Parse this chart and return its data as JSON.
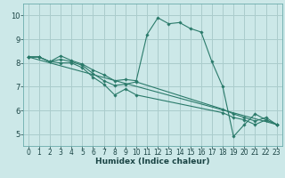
{
  "xlabel": "Humidex (Indice chaleur)",
  "bg_color": "#cce8e8",
  "grid_color": "#aacccc",
  "line_color": "#2a7a6a",
  "xlim": [
    -0.5,
    23.5
  ],
  "ylim": [
    4.5,
    10.5
  ],
  "yticks": [
    5,
    6,
    7,
    8,
    9,
    10
  ],
  "xticks": [
    0,
    1,
    2,
    3,
    4,
    5,
    6,
    7,
    8,
    9,
    10,
    11,
    12,
    13,
    14,
    15,
    16,
    17,
    18,
    19,
    20,
    21,
    22,
    23
  ],
  "lines": [
    {
      "x": [
        0,
        1,
        2,
        3,
        4,
        5,
        6,
        7,
        8,
        9,
        10,
        11,
        12,
        13,
        14,
        15,
        16,
        17,
        18,
        19,
        20,
        21,
        22,
        23
      ],
      "y": [
        8.25,
        8.25,
        8.05,
        8.3,
        8.1,
        7.95,
        7.7,
        7.5,
        7.25,
        7.3,
        7.25,
        9.2,
        9.9,
        9.65,
        9.7,
        9.45,
        9.3,
        8.05,
        7.0,
        4.9,
        5.4,
        5.85,
        5.6,
        5.4
      ]
    },
    {
      "x": [
        0,
        1,
        2,
        3,
        4,
        5,
        6,
        7,
        8,
        9,
        10,
        18,
        19,
        20,
        21,
        22,
        23
      ],
      "y": [
        8.25,
        8.25,
        8.05,
        8.15,
        8.05,
        7.9,
        7.55,
        7.25,
        7.05,
        7.1,
        7.2,
        6.05,
        5.85,
        5.7,
        5.55,
        5.7,
        5.4
      ]
    },
    {
      "x": [
        0,
        1,
        2,
        3,
        4,
        5,
        6,
        7,
        8,
        9,
        10,
        18,
        19,
        20,
        21,
        22,
        23
      ],
      "y": [
        8.25,
        8.25,
        8.05,
        8.0,
        8.0,
        7.8,
        7.4,
        7.1,
        6.65,
        6.9,
        6.65,
        5.9,
        5.7,
        5.6,
        5.4,
        5.6,
        5.4
      ]
    },
    {
      "x": [
        0,
        23
      ],
      "y": [
        8.25,
        5.4
      ]
    }
  ]
}
